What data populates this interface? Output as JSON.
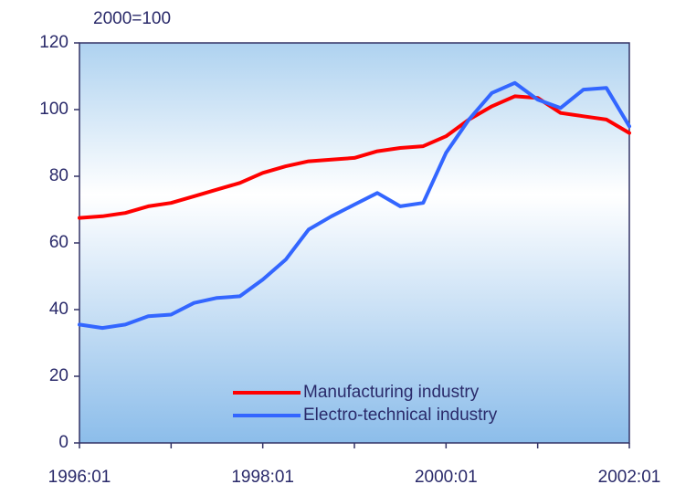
{
  "chart_data": {
    "type": "line",
    "subtitle": "2000=100",
    "x": [
      1996,
      1996.25,
      1996.5,
      1996.75,
      1997,
      1997.25,
      1997.5,
      1997.75,
      1998,
      1998.25,
      1998.5,
      1998.75,
      1999,
      1999.25,
      1999.5,
      1999.75,
      2000,
      2000.25,
      2000.5,
      2000.75,
      2001,
      2001.25,
      2001.5,
      2001.75,
      2002
    ],
    "series": [
      {
        "name": "Manufacturing industry",
        "color": "#ff0000",
        "values": [
          67.5,
          68,
          69,
          71,
          72,
          74,
          76,
          78,
          81,
          83,
          84.5,
          85,
          85.5,
          87.5,
          88.5,
          89,
          92,
          97,
          101,
          104,
          103.5,
          99,
          98,
          97,
          93
        ]
      },
      {
        "name": "Electro-technical industry",
        "color": "#3366ff",
        "values": [
          35.5,
          34.5,
          35.5,
          38,
          38.5,
          42,
          43.5,
          44,
          49,
          55,
          64,
          68,
          71.5,
          75,
          71,
          72,
          87,
          97,
          105,
          108,
          103,
          100.5,
          106,
          106.5,
          95
        ]
      }
    ],
    "xlim": [
      1996,
      2002
    ],
    "xticks": [
      {
        "value": 1996,
        "label": "1996:01"
      },
      {
        "value": 1998,
        "label": "1998:01"
      },
      {
        "value": 2000,
        "label": "2000:01"
      },
      {
        "value": 2002,
        "label": "2002:01"
      }
    ],
    "xminorticks": [
      1997,
      1999,
      2001
    ],
    "ylim": [
      0,
      120
    ],
    "yticks": [
      0,
      20,
      40,
      60,
      80,
      100,
      120
    ],
    "grid": false,
    "legend": "lower right"
  }
}
